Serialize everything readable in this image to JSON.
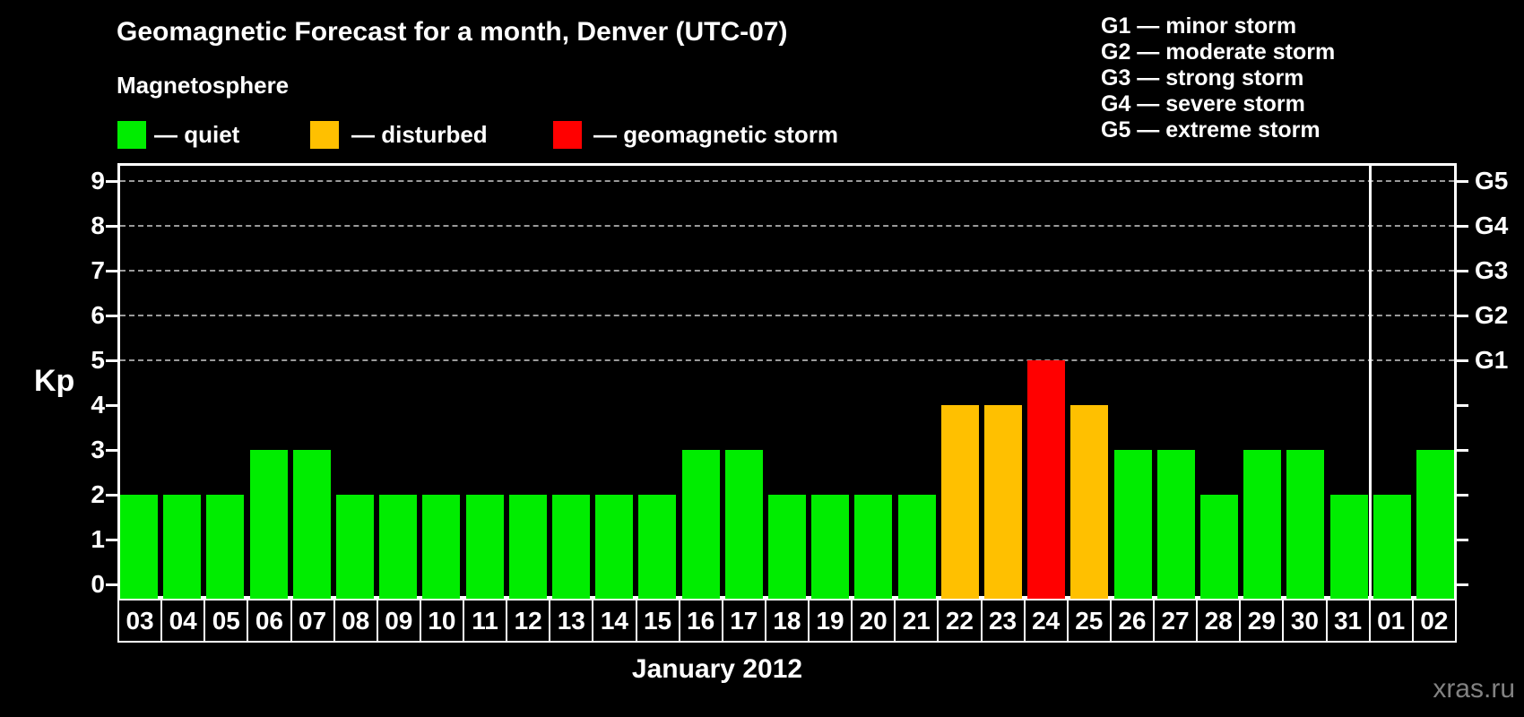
{
  "header": {
    "title": "Geomagnetic Forecast for a month, Denver (UTC-07)",
    "subtitle": "Magnetosphere",
    "watermark": "xras.ru"
  },
  "legend": {
    "items": [
      {
        "key": "quiet",
        "label": "— quiet",
        "color": "#00ed00"
      },
      {
        "key": "disturbed",
        "label": "— disturbed",
        "color": "#ffc000"
      },
      {
        "key": "storm",
        "label": "— geomagnetic storm",
        "color": "#ff0000"
      }
    ]
  },
  "storm_scale_legend": {
    "items": [
      "G1 — minor storm",
      "G2 — moderate storm",
      "G3 — strong storm",
      "G4 — severe storm",
      "G5 — extreme storm"
    ]
  },
  "chart_data": {
    "type": "bar",
    "title": "Geomagnetic Forecast for a month, Denver (UTC-07)",
    "xlabel": "January 2012",
    "ylabel": "Kp",
    "ylim": [
      -0.4,
      9.4
    ],
    "yticks": [
      0,
      1,
      2,
      3,
      4,
      5,
      6,
      7,
      8,
      9
    ],
    "gridlines_at_kp": [
      5,
      6,
      7,
      8,
      9
    ],
    "grid": "dashed-horizontal-at-G-levels",
    "legend_position": "top-left",
    "right_axis_labels": [
      {
        "kp": 5,
        "label": "G1"
      },
      {
        "kp": 6,
        "label": "G2"
      },
      {
        "kp": 7,
        "label": "G3"
      },
      {
        "kp": 8,
        "label": "G4"
      },
      {
        "kp": 9,
        "label": "G5"
      }
    ],
    "categories": [
      "03",
      "04",
      "05",
      "06",
      "07",
      "08",
      "09",
      "10",
      "11",
      "12",
      "13",
      "14",
      "15",
      "16",
      "17",
      "18",
      "19",
      "20",
      "21",
      "22",
      "23",
      "24",
      "25",
      "26",
      "27",
      "28",
      "29",
      "30",
      "31",
      "01",
      "02"
    ],
    "values": [
      2,
      2,
      2,
      3,
      3,
      2,
      2,
      2,
      2,
      2,
      2,
      2,
      2,
      3,
      3,
      2,
      2,
      2,
      2,
      4,
      4,
      5,
      4,
      3,
      3,
      2,
      3,
      3,
      2,
      2,
      3
    ],
    "status_thresholds": {
      "disturbed_min": 4,
      "storm_min": 5
    },
    "colors": {
      "quiet": "#00ed00",
      "disturbed": "#ffc000",
      "storm": "#ff0000"
    },
    "month_separator_before_index": 29
  }
}
